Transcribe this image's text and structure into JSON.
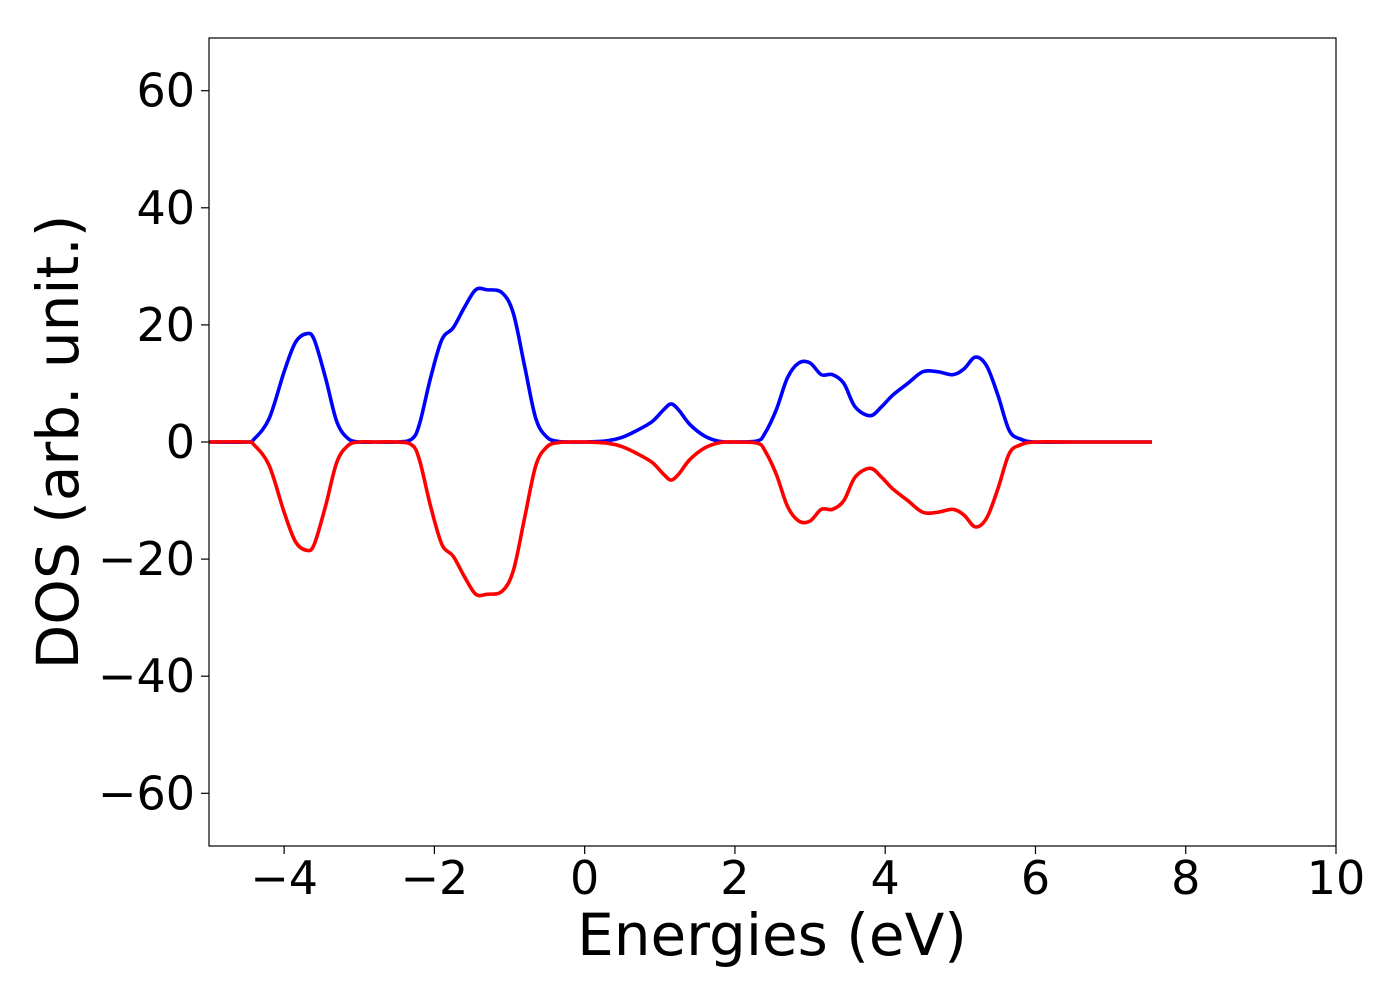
{
  "chart_data": {
    "type": "line",
    "title": "",
    "xlabel": "Energies (eV)",
    "ylabel": "DOS (arb. unit.)",
    "xlim": [
      -5,
      10
    ],
    "ylim": [
      -69,
      69
    ],
    "xticks": [
      -4,
      -2,
      0,
      2,
      4,
      6,
      8,
      10
    ],
    "yticks": [
      -60,
      -40,
      -20,
      0,
      20,
      40,
      60
    ],
    "xtick_labels": [
      "−4",
      "−2",
      "0",
      "2",
      "4",
      "6",
      "8",
      "10"
    ],
    "ytick_labels": [
      "−60",
      "−40",
      "−20",
      "0",
      "20",
      "40",
      "60"
    ],
    "grid": false,
    "legend": "none",
    "series": [
      {
        "color": "#0000ff",
        "x": [
          -5.0,
          -4.5,
          -4.4,
          -4.2,
          -4.0,
          -3.85,
          -3.7,
          -3.6,
          -3.45,
          -3.3,
          -3.15,
          -3.0,
          -2.8,
          -2.5,
          -2.3,
          -2.2,
          -2.05,
          -1.9,
          -1.75,
          -1.6,
          -1.45,
          -1.3,
          -1.1,
          -0.95,
          -0.8,
          -0.65,
          -0.5,
          -0.35,
          -0.2,
          0.0,
          0.3,
          0.5,
          0.7,
          0.9,
          1.05,
          1.15,
          1.25,
          1.4,
          1.6,
          1.8,
          2.0,
          2.3,
          2.4,
          2.55,
          2.7,
          2.85,
          3.0,
          3.15,
          3.3,
          3.45,
          3.6,
          3.8,
          3.95,
          4.1,
          4.3,
          4.5,
          4.7,
          4.9,
          5.05,
          5.2,
          5.35,
          5.5,
          5.65,
          5.8,
          6.0,
          6.5,
          7.0,
          7.55
        ],
        "y": [
          0,
          0,
          0.5,
          4,
          12,
          17,
          18.5,
          17.5,
          11,
          3.5,
          0.6,
          0,
          0,
          0,
          0.5,
          3,
          11,
          17.5,
          19.5,
          23,
          26,
          26,
          25.5,
          22,
          13,
          4,
          0.8,
          0.1,
          0,
          0,
          0.2,
          0.8,
          2,
          3.5,
          5.5,
          6.5,
          5.5,
          3,
          1,
          0.1,
          0,
          0.2,
          1.5,
          5.5,
          11,
          13.5,
          13.5,
          11.5,
          11.5,
          10,
          6,
          4.5,
          6,
          8,
          10,
          12,
          12,
          11.5,
          12.5,
          14.5,
          13,
          8,
          2,
          0.5,
          0,
          0,
          0,
          0
        ]
      },
      {
        "color": "#ff0000",
        "x": [
          -5.0,
          -4.5,
          -4.4,
          -4.2,
          -4.0,
          -3.85,
          -3.7,
          -3.6,
          -3.45,
          -3.3,
          -3.15,
          -3.0,
          -2.8,
          -2.5,
          -2.3,
          -2.2,
          -2.05,
          -1.9,
          -1.75,
          -1.6,
          -1.45,
          -1.3,
          -1.1,
          -0.95,
          -0.8,
          -0.65,
          -0.5,
          -0.35,
          -0.2,
          0.0,
          0.3,
          0.5,
          0.7,
          0.9,
          1.05,
          1.15,
          1.25,
          1.4,
          1.6,
          1.8,
          2.0,
          2.3,
          2.4,
          2.55,
          2.7,
          2.85,
          3.0,
          3.15,
          3.3,
          3.45,
          3.6,
          3.8,
          3.95,
          4.1,
          4.3,
          4.5,
          4.7,
          4.9,
          5.05,
          5.2,
          5.35,
          5.5,
          5.65,
          5.8,
          6.0,
          6.5,
          7.0,
          7.55
        ],
        "y": [
          0,
          0,
          -0.5,
          -4,
          -12,
          -17,
          -18.5,
          -17.5,
          -11,
          -3.5,
          -0.6,
          0,
          0,
          0,
          -0.5,
          -3,
          -11,
          -17.5,
          -19.5,
          -23,
          -26,
          -26,
          -25.5,
          -22,
          -13,
          -4,
          -0.8,
          -0.1,
          0,
          0,
          -0.2,
          -0.8,
          -2,
          -3.5,
          -5.5,
          -6.5,
          -5.5,
          -3,
          -1,
          -0.1,
          0,
          -0.2,
          -1.5,
          -5.5,
          -11,
          -13.5,
          -13.5,
          -11.5,
          -11.5,
          -10,
          -6,
          -4.5,
          -6,
          -8,
          -10,
          -12,
          -12,
          -11.5,
          -12.5,
          -14.5,
          -13,
          -8,
          -2,
          -0.5,
          0,
          0,
          0,
          0
        ]
      }
    ]
  }
}
